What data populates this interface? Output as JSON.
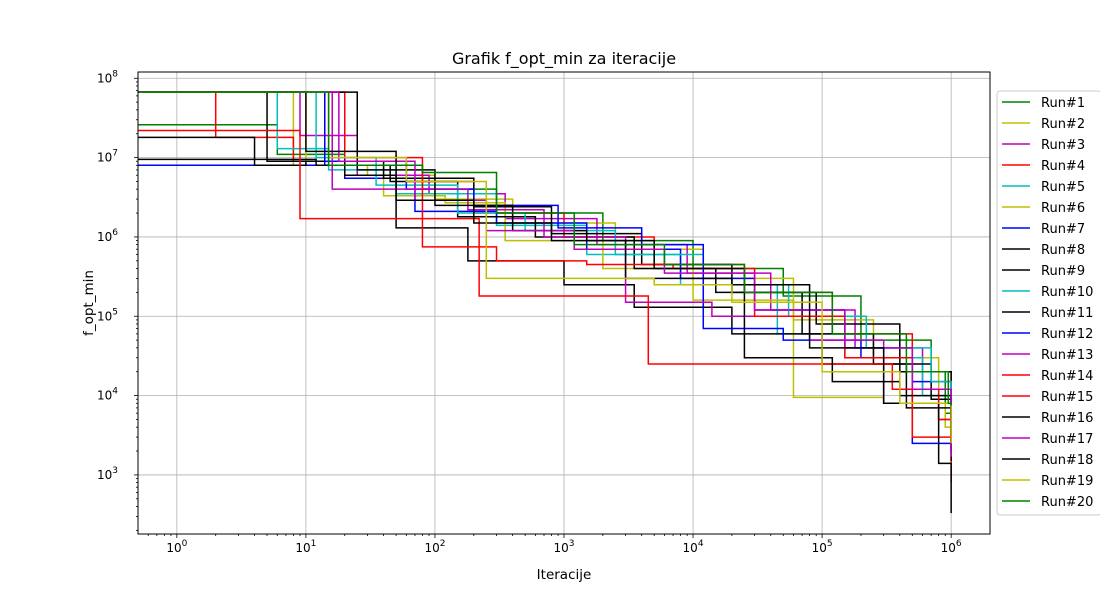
{
  "chart_data": {
    "type": "line",
    "title": "Grafik f_opt_min za iteracije",
    "xlabel": "Iteracije",
    "ylabel": "f_opt_min",
    "xscale": "log",
    "yscale": "log",
    "xlim": [
      0.5,
      2000000
    ],
    "ylim": [
      180,
      120000000
    ],
    "x_ticks": [
      {
        "value": 1,
        "base": "10",
        "exp": "0"
      },
      {
        "value": 10,
        "base": "10",
        "exp": "1"
      },
      {
        "value": 100,
        "base": "10",
        "exp": "2"
      },
      {
        "value": 1000,
        "base": "10",
        "exp": "3"
      },
      {
        "value": 10000,
        "base": "10",
        "exp": "4"
      },
      {
        "value": 100000,
        "base": "10",
        "exp": "5"
      },
      {
        "value": 1000000,
        "base": "10",
        "exp": "6"
      }
    ],
    "y_ticks": [
      {
        "value": 1000,
        "base": "10",
        "exp": "3"
      },
      {
        "value": 10000,
        "base": "10",
        "exp": "4"
      },
      {
        "value": 100000,
        "base": "10",
        "exp": "5"
      },
      {
        "value": 1000000,
        "base": "10",
        "exp": "6"
      },
      {
        "value": 10000000,
        "base": "10",
        "exp": "7"
      },
      {
        "value": 100000000,
        "base": "10",
        "exp": "8"
      }
    ],
    "grid": true,
    "legend_position": "outside-right",
    "drawstyle": "steps-post",
    "series": [
      {
        "name": "Run#1",
        "color": "#008000",
        "x": [
          0.5,
          3,
          6,
          20,
          80,
          300,
          2000,
          10000,
          50000,
          200000,
          700000,
          900000,
          1000000
        ],
        "y": [
          26000000,
          26000000,
          11000000,
          8000000,
          4000000,
          2000000,
          900000,
          400000,
          180000,
          50000,
          20000,
          6000,
          2500
        ]
      },
      {
        "name": "Run#2",
        "color": "#bfbf00",
        "x": [
          0.5,
          4,
          8,
          30,
          100,
          400,
          2500,
          12000,
          60000,
          250000,
          800000,
          1000000
        ],
        "y": [
          67000000,
          67000000,
          8000000,
          6000000,
          3000000,
          1500000,
          700000,
          300000,
          90000,
          30000,
          8000,
          3000
        ]
      },
      {
        "name": "Run#3",
        "color": "#bf00bf",
        "x": [
          0.5,
          5,
          9,
          25,
          90,
          350,
          1800,
          9000,
          40000,
          180000,
          600000,
          1000000
        ],
        "y": [
          67000000,
          67000000,
          19000000,
          6000000,
          3500000,
          1700000,
          800000,
          350000,
          120000,
          40000,
          12000,
          4000
        ]
      },
      {
        "name": "Run#4",
        "color": "#ff0000",
        "x": [
          0.5,
          1,
          2,
          8,
          60,
          200,
          1000,
          5000,
          25000,
          120000,
          500000,
          1000000
        ],
        "y": [
          67000000,
          67000000,
          18000000,
          9000000,
          5000000,
          2000000,
          1000000,
          450000,
          200000,
          60000,
          20000,
          5000
        ]
      },
      {
        "name": "Run#5",
        "color": "#00bfbf",
        "x": [
          0.5,
          3,
          6,
          15,
          50,
          300,
          1500,
          8000,
          45000,
          150000,
          600000,
          1000000
        ],
        "y": [
          67000000,
          67000000,
          13000000,
          7000000,
          3500000,
          1400000,
          600000,
          250000,
          60000,
          30000,
          10000,
          3000
        ]
      },
      {
        "name": "Run#6",
        "color": "#bfbf00",
        "x": [
          0.5,
          4,
          10,
          40,
          120,
          350,
          2000,
          10000,
          60000,
          300000,
          900000,
          1000000
        ],
        "y": [
          67000000,
          67000000,
          8000000,
          3300000,
          2700000,
          900000,
          400000,
          160000,
          9500,
          8000,
          4000,
          2000
        ]
      },
      {
        "name": "Run#7",
        "color": "#0000ff",
        "x": [
          0.5,
          4,
          14,
          20,
          70,
          300,
          1500,
          8000,
          30000,
          150000,
          500000,
          1000000
        ],
        "y": [
          8000000,
          8000000,
          67000000,
          5500000,
          2100000,
          1500000,
          700000,
          300000,
          120000,
          40000,
          15000,
          5000
        ]
      },
      {
        "name": "Run#8",
        "color": "#000000",
        "x": [
          0.5,
          4,
          12,
          45,
          150,
          600,
          3500,
          15000,
          70000,
          250000,
          700000,
          1000000
        ],
        "y": [
          9500000,
          9500000,
          8000000,
          5000000,
          1800000,
          1000000,
          400000,
          200000,
          60000,
          25000,
          9000,
          3000
        ]
      },
      {
        "name": "Run#9",
        "color": "#000000",
        "x": [
          0.5,
          3,
          4,
          10,
          40,
          200,
          800,
          4000,
          20000,
          90000,
          400000,
          1000000
        ],
        "y": [
          18000000,
          18000000,
          8000000,
          9000000,
          5500000,
          2400000,
          1100000,
          450000,
          200000,
          80000,
          20000,
          4000
        ]
      },
      {
        "name": "Run#10",
        "color": "#00bfbf",
        "x": [
          0.5,
          5,
          12,
          35,
          150,
          500,
          2500,
          12000,
          55000,
          220000,
          700000,
          1000000
        ],
        "y": [
          67000000,
          67000000,
          10000000,
          4500000,
          2000000,
          1200000,
          600000,
          250000,
          100000,
          40000,
          15000,
          2200
        ]
      },
      {
        "name": "Run#11",
        "color": "#000000",
        "x": [
          0.5,
          3,
          5,
          20,
          50,
          180,
          1000,
          3500,
          20000,
          100000,
          450000,
          1000000
        ],
        "y": [
          67000000,
          67000000,
          9000000,
          6000000,
          1300000,
          500000,
          250000,
          130000,
          60000,
          25000,
          7000,
          2000
        ]
      },
      {
        "name": "Run#12",
        "color": "#0000ff",
        "x": [
          0.5,
          6,
          14,
          60,
          200,
          900,
          4000,
          12000,
          50000,
          200000,
          500000,
          1000000
        ],
        "y": [
          67000000,
          67000000,
          9000000,
          4000000,
          2500000,
          1300000,
          800000,
          70000,
          50000,
          30000,
          2500,
          1800
        ]
      },
      {
        "name": "Run#13",
        "color": "#bf00bf",
        "x": [
          0.5,
          7,
          16,
          45,
          180,
          700,
          3000,
          14000,
          80000,
          300000,
          800000,
          1000000
        ],
        "y": [
          67000000,
          67000000,
          4000000,
          4000000,
          2200000,
          1000000,
          150000,
          100000,
          50000,
          8000,
          5000,
          2000
        ]
      },
      {
        "name": "Run#14",
        "color": "#ff0000",
        "x": [
          0.5,
          2,
          9,
          70,
          220,
          1000,
          4500,
          22000,
          100000,
          350000,
          800000,
          1000000
        ],
        "y": [
          22000000,
          22000000,
          1700000,
          1700000,
          180000,
          180000,
          25000,
          25000,
          25000,
          12000,
          5000,
          800
        ]
      },
      {
        "name": "Run#15",
        "color": "#ff0000",
        "x": [
          0.5,
          5,
          20,
          80,
          300,
          1500,
          7000,
          30000,
          150000,
          500000,
          1000000
        ],
        "y": [
          67000000,
          67000000,
          10000000,
          750000,
          500000,
          450000,
          400000,
          100000,
          30000,
          3000,
          2000
        ]
      },
      {
        "name": "Run#16",
        "color": "#000000",
        "x": [
          0.5,
          8,
          25,
          100,
          400,
          1500,
          5000,
          25000,
          120000,
          400000,
          1000000
        ],
        "y": [
          67000000,
          67000000,
          7000000,
          2500000,
          1200000,
          900000,
          400000,
          30000,
          15000,
          10000,
          1500
        ]
      },
      {
        "name": "Run#17",
        "color": "#bf00bf",
        "x": [
          0.5,
          6,
          18,
          70,
          250,
          1200,
          6000,
          30000,
          150000,
          500000,
          1000000
        ],
        "y": [
          67000000,
          67000000,
          9000000,
          2900000,
          1200000,
          700000,
          350000,
          120000,
          40000,
          12000,
          1700
        ]
      },
      {
        "name": "Run#18",
        "color": "#000000",
        "x": [
          0.5,
          3,
          10,
          50,
          200,
          800,
          3000,
          20000,
          80000,
          300000,
          800000,
          1000000
        ],
        "y": [
          67000000,
          67000000,
          12000000,
          2900000,
          1500000,
          900000,
          300000,
          250000,
          40000,
          8000,
          1400,
          330
        ]
      },
      {
        "name": "Run#19",
        "color": "#bfbf00",
        "x": [
          0.5,
          6,
          15,
          60,
          250,
          1000,
          5000,
          20000,
          100000,
          400000,
          1000000
        ],
        "y": [
          67000000,
          67000000,
          10000000,
          5000000,
          300000,
          300000,
          250000,
          150000,
          20000,
          8000,
          2500
        ]
      },
      {
        "name": "Run#20",
        "color": "#008000",
        "x": [
          0.5,
          4,
          15,
          80,
          300,
          1200,
          6000,
          25000,
          120000,
          450000,
          950000,
          1000000
        ],
        "y": [
          67000000,
          67000000,
          8000000,
          6500000,
          2000000,
          800000,
          450000,
          200000,
          60000,
          20000,
          8000,
          7500
        ]
      }
    ]
  }
}
